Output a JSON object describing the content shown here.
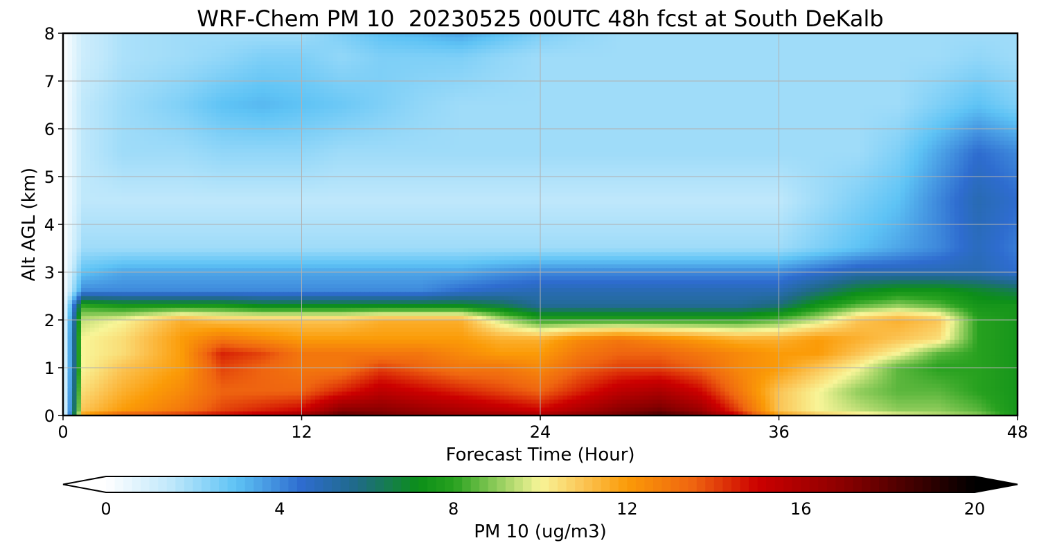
{
  "chart_data": {
    "type": "heatmap",
    "title": "WRF-Chem PM 10  20230525 00UTC 48h fcst at South DeKalb",
    "xlabel": "Forecast Time (Hour)",
    "ylabel": "Alt AGL (km)",
    "xlim": [
      0,
      48
    ],
    "ylim": [
      0,
      8
    ],
    "x_ticks": [
      "0",
      "12",
      "24",
      "36",
      "48"
    ],
    "y_ticks": [
      "0",
      "1",
      "2",
      "3",
      "4",
      "5",
      "6",
      "7",
      "8"
    ],
    "grid": true,
    "x_hours": [
      0,
      1,
      3,
      6,
      8,
      10,
      12,
      14,
      16,
      18,
      20,
      22,
      24,
      26,
      28,
      30,
      32,
      34,
      36,
      38,
      40,
      42,
      44,
      46,
      48
    ],
    "z_km": [
      0,
      0.1,
      0.5,
      1.0,
      1.3,
      1.6,
      2.0,
      2.3,
      2.6,
      3.0,
      3.5,
      4.5,
      5.5,
      6.5,
      7.5,
      8.0
    ],
    "values": [
      [
        0,
        12,
        14,
        14.5,
        15,
        15.5,
        16.5,
        18,
        17.5,
        17,
        16.5,
        16.5,
        16,
        17,
        17.5,
        18.5,
        17.5,
        15,
        12,
        11,
        10.5,
        10,
        9.5,
        9,
        7.5
      ],
      [
        0,
        11,
        12,
        13,
        14,
        14.5,
        15,
        17,
        17,
        16.5,
        16,
        15.5,
        15,
        16,
        17,
        17.5,
        16.5,
        14,
        11,
        10,
        9.5,
        9,
        9,
        8.5,
        7.5
      ],
      [
        0,
        10.5,
        11.5,
        12.5,
        13.5,
        13.5,
        13.5,
        14.5,
        15.5,
        15,
        14.5,
        14,
        13.5,
        14.5,
        15.5,
        16,
        15,
        13,
        11,
        10,
        9,
        8.5,
        8.5,
        8,
        7.5
      ],
      [
        0,
        10,
        11,
        12,
        14,
        13.5,
        13,
        13,
        14,
        13.5,
        13,
        13,
        12.5,
        13.5,
        14,
        14,
        13.5,
        12.5,
        12,
        11,
        10,
        8.5,
        8,
        8,
        7.5
      ],
      [
        0,
        10,
        10.5,
        12,
        14.5,
        14,
        13,
        13,
        13,
        13,
        12.5,
        12,
        12,
        13,
        13.5,
        13.5,
        13,
        12.5,
        12,
        12,
        11,
        10,
        8.5,
        8,
        7.5
      ],
      [
        0,
        10,
        10.5,
        12,
        13,
        12.5,
        12,
        12,
        12,
        12,
        12,
        11.5,
        11.5,
        12.5,
        13,
        12.5,
        12,
        11.5,
        11.5,
        12,
        11.5,
        11,
        10.5,
        8,
        7.5
      ],
      [
        0,
        9.5,
        10,
        11.5,
        11,
        11,
        11,
        11,
        11.5,
        11.5,
        11.5,
        9.5,
        8,
        8,
        8,
        8,
        8,
        8,
        8.5,
        9.5,
        11,
        11.5,
        11,
        8,
        7.5
      ],
      [
        0,
        8,
        7.5,
        7.5,
        7.5,
        7,
        7,
        7,
        7,
        7,
        7,
        6.5,
        5.5,
        5.5,
        5.5,
        5.5,
        5.5,
        5.5,
        6,
        7.5,
        8.5,
        9,
        8.5,
        7.5,
        7.5
      ],
      [
        0,
        4,
        4,
        4,
        4,
        4,
        4,
        4,
        4,
        4,
        4.5,
        4.8,
        5,
        5,
        5,
        5,
        5,
        5,
        5,
        6,
        7,
        7.5,
        7.5,
        7,
        6.5
      ],
      [
        0,
        3,
        3.5,
        3.5,
        3.5,
        3.5,
        3.5,
        3.5,
        3.5,
        3.5,
        3.5,
        3.8,
        4,
        4,
        4,
        4,
        4,
        4,
        4,
        4.5,
        5,
        5,
        5,
        5,
        4.5
      ],
      [
        0,
        2,
        2,
        2,
        2,
        2,
        2,
        2,
        2,
        2,
        2,
        2,
        2,
        2,
        2,
        2,
        2,
        2,
        2,
        2.5,
        3,
        3.5,
        4,
        4.8,
        4.2
      ],
      [
        0,
        1.5,
        1.5,
        1.5,
        1.5,
        1.5,
        1.5,
        1.5,
        1.5,
        1.5,
        1.5,
        1.5,
        1.5,
        1.5,
        1.5,
        1.5,
        1.5,
        1.5,
        1.5,
        2,
        2.5,
        3,
        4,
        5,
        4.5
      ],
      [
        0,
        1.5,
        2,
        2,
        2.2,
        2.2,
        2.2,
        2,
        2,
        2,
        2,
        2,
        2,
        2,
        2,
        2,
        2,
        2,
        2,
        2,
        2,
        2.5,
        3.5,
        4.5,
        4
      ],
      [
        0,
        1.5,
        2,
        2.5,
        3,
        3.2,
        3,
        2.8,
        2.5,
        2.2,
        2,
        2,
        2,
        2,
        2,
        2,
        2,
        2,
        2,
        2,
        2,
        2,
        2.5,
        3,
        2.5
      ],
      [
        0,
        1.2,
        1.8,
        2,
        2.2,
        2.5,
        2.5,
        2.2,
        2.5,
        2.5,
        2.5,
        2.2,
        2,
        2,
        2,
        2,
        2,
        2,
        2,
        2,
        2,
        2,
        2,
        2.2,
        2
      ],
      [
        0,
        1.2,
        1.8,
        2,
        2,
        2,
        2,
        2.5,
        3,
        3.2,
        3.5,
        3,
        2.5,
        2.2,
        2,
        2,
        2,
        2,
        2,
        2,
        2,
        2,
        2,
        2,
        2
      ]
    ],
    "colorbar": {
      "label": "PM 10  (ug/m3)",
      "min": 0,
      "max": 20,
      "ticks": [
        "0",
        "4",
        "8",
        "12",
        "16",
        "20"
      ],
      "extend": "both",
      "colors": [
        {
          "value": 0,
          "color": "#ffffff"
        },
        {
          "value": 1.5,
          "color": "#bfe8fb"
        },
        {
          "value": 3,
          "color": "#5ec3f5"
        },
        {
          "value": 4.5,
          "color": "#2e6ccf"
        },
        {
          "value": 5.8,
          "color": "#1f6a86"
        },
        {
          "value": 7.2,
          "color": "#0c8f18"
        },
        {
          "value": 8,
          "color": "#27a11f"
        },
        {
          "value": 9,
          "color": "#8fcc5b"
        },
        {
          "value": 10,
          "color": "#f8f598"
        },
        {
          "value": 11,
          "color": "#fbc454"
        },
        {
          "value": 12,
          "color": "#fb9b07"
        },
        {
          "value": 13.5,
          "color": "#ef6510"
        },
        {
          "value": 15,
          "color": "#cc0000"
        },
        {
          "value": 17,
          "color": "#8a0000"
        },
        {
          "value": 18.5,
          "color": "#450000"
        },
        {
          "value": 20,
          "color": "#000000"
        }
      ]
    }
  }
}
